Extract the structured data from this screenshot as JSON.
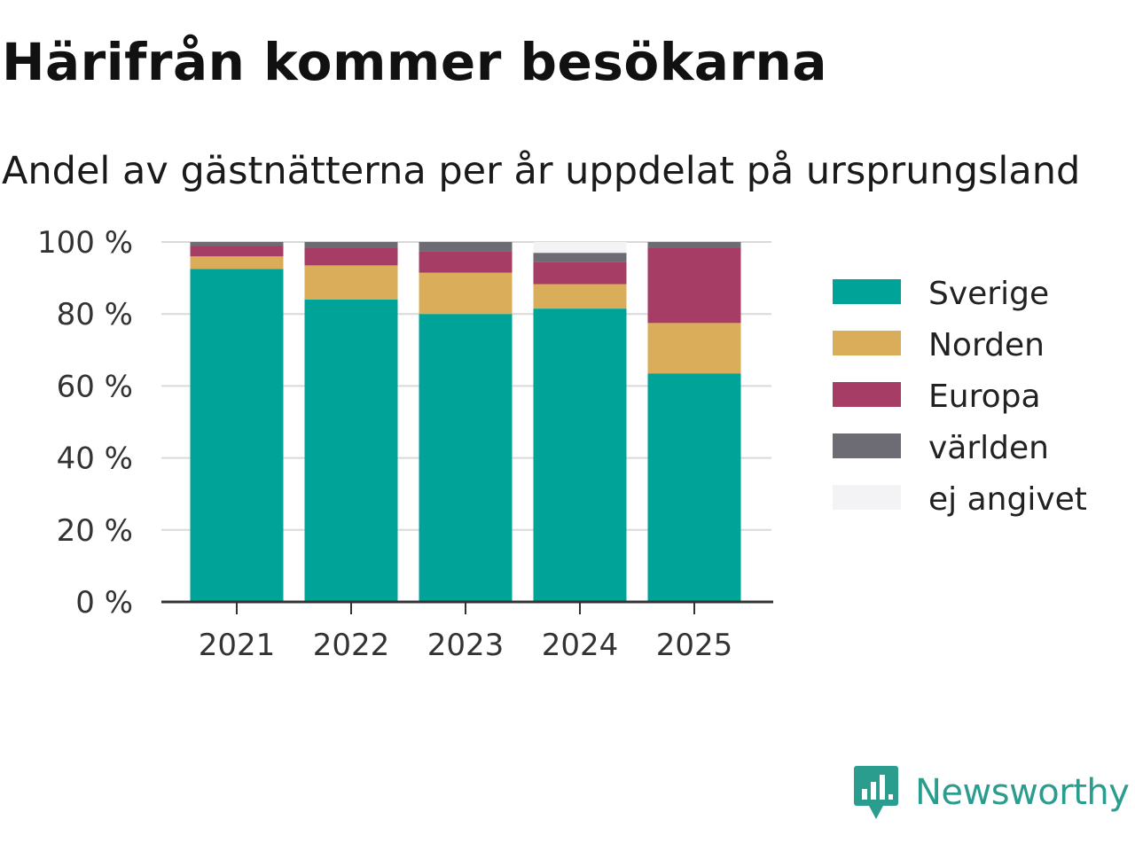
{
  "title": "Härifrån kommer besökarna",
  "subtitle": "Andel av gästnätterna per år uppdelat på ursprungsland",
  "brand": {
    "name": "Newsworthy",
    "color": "#2a9d8f",
    "icon": "newsworthy-logo-icon"
  },
  "chart_data": {
    "type": "bar",
    "stacked": true,
    "categories": [
      "2021",
      "2022",
      "2023",
      "2024",
      "2025"
    ],
    "series": [
      {
        "name": "Sverige",
        "color": "#00a398",
        "values": [
          92.5,
          84,
          80,
          81.5,
          63.5
        ]
      },
      {
        "name": "Norden",
        "color": "#d9ad59",
        "values": [
          3.5,
          9.5,
          11.5,
          6.8,
          14
        ]
      },
      {
        "name": "Europa",
        "color": "#a63d64",
        "values": [
          3,
          5,
          6,
          6.2,
          21
        ]
      },
      {
        "name": "världen",
        "color": "#6d6c74",
        "values": [
          1,
          1.5,
          2.5,
          2.5,
          1.5
        ]
      },
      {
        "name": "ej angivet",
        "color": "#f3f2f4",
        "values": [
          0,
          0,
          0,
          3,
          0
        ]
      }
    ],
    "yticks": [
      "0 %",
      "20 %",
      "40 %",
      "60 %",
      "80 %",
      "100 %"
    ],
    "ylim": [
      0,
      100
    ],
    "xlabel": "",
    "ylabel": "",
    "grid": true,
    "legend": "right"
  }
}
